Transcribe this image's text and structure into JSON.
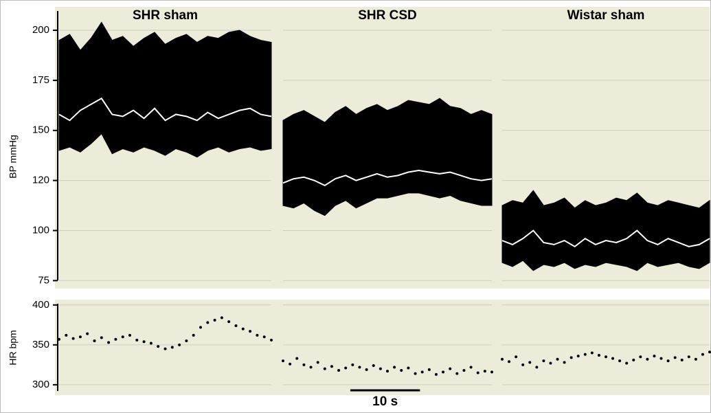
{
  "chart_data": [
    {
      "type": "band",
      "ylabel": "BP mmHg",
      "ylim": [
        71,
        211
      ],
      "yticks": [
        75,
        100,
        120,
        150,
        175,
        200
      ],
      "xlim": [
        0,
        30
      ],
      "x": [
        0,
        1.5,
        3,
        4.5,
        6,
        7.5,
        9,
        10.5,
        12,
        13.5,
        15,
        16.5,
        18,
        19.5,
        21,
        22.5,
        24,
        25.5,
        27,
        28.5,
        30
      ],
      "band_color": "#000000",
      "line_color": "#ffffff",
      "grid": true,
      "series": [
        {
          "name": "SHR sham",
          "upper": [
            195,
            198,
            190,
            196,
            204,
            195,
            197,
            192,
            196,
            199,
            193,
            196,
            198,
            194,
            197,
            196,
            199,
            200,
            197,
            195,
            194
          ],
          "lower": [
            138,
            140,
            137,
            142,
            148,
            136,
            139,
            137,
            140,
            138,
            135,
            139,
            137,
            134,
            138,
            140,
            137,
            139,
            140,
            138,
            139
          ],
          "mean": [
            158,
            155,
            160,
            163,
            166,
            158,
            157,
            160,
            156,
            161,
            155,
            158,
            157,
            155,
            159,
            156,
            158,
            160,
            161,
            158,
            157
          ]
        },
        {
          "name": "SHR CSD",
          "upper": [
            155,
            158,
            160,
            157,
            154,
            159,
            162,
            158,
            161,
            163,
            160,
            162,
            165,
            164,
            163,
            166,
            162,
            161,
            158,
            160,
            158
          ],
          "lower": [
            110,
            109,
            111,
            108,
            106,
            110,
            112,
            109,
            111,
            113,
            113,
            114,
            115,
            115,
            114,
            113,
            114,
            112,
            111,
            110,
            110
          ],
          "mean": [
            119,
            121,
            122,
            120,
            118,
            121,
            123,
            120,
            122,
            124,
            122,
            123,
            125,
            126,
            125,
            124,
            125,
            123,
            121,
            120,
            121
          ]
        },
        {
          "name": "Wistar sham",
          "upper": [
            110,
            112,
            111,
            116,
            110,
            111,
            113,
            109,
            112,
            110,
            111,
            113,
            112,
            115,
            111,
            110,
            112,
            111,
            110,
            109,
            112
          ],
          "lower": [
            84,
            82,
            85,
            80,
            83,
            82,
            84,
            81,
            83,
            82,
            84,
            83,
            82,
            80,
            84,
            82,
            83,
            84,
            82,
            81,
            84
          ],
          "mean": [
            95,
            93,
            96,
            100,
            94,
            93,
            95,
            92,
            96,
            93,
            95,
            94,
            96,
            100,
            95,
            93,
            96,
            94,
            92,
            93,
            96
          ]
        }
      ]
    },
    {
      "type": "scatter",
      "ylabel": "HR bpm",
      "ylim": [
        287,
        405
      ],
      "yticks": [
        300,
        350,
        400
      ],
      "xlim": [
        0,
        30
      ],
      "x": [
        0,
        1,
        2,
        3,
        4,
        5,
        6,
        7,
        8,
        9,
        10,
        11,
        12,
        13,
        14,
        15,
        16,
        17,
        18,
        19,
        20,
        21,
        22,
        23,
        24,
        25,
        26,
        27,
        28,
        29,
        30
      ],
      "color": "#000000",
      "grid": true,
      "series": [
        {
          "values": [
            357,
            362,
            358,
            360,
            364,
            355,
            359,
            353,
            357,
            360,
            362,
            356,
            354,
            352,
            348,
            345,
            347,
            350,
            355,
            362,
            372,
            378,
            381,
            384,
            379,
            374,
            370,
            367,
            362,
            360,
            356
          ]
        },
        {
          "values": [
            330,
            326,
            333,
            325,
            322,
            328,
            320,
            323,
            318,
            321,
            325,
            322,
            319,
            324,
            320,
            317,
            322,
            318,
            321,
            314,
            316,
            319,
            313,
            316,
            320,
            314,
            318,
            322,
            315,
            317,
            316
          ]
        },
        {
          "values": [
            332,
            329,
            335,
            325,
            328,
            322,
            330,
            327,
            332,
            328,
            334,
            336,
            338,
            340,
            337,
            335,
            333,
            330,
            327,
            331,
            335,
            332,
            336,
            333,
            330,
            334,
            331,
            335,
            332,
            338,
            341
          ]
        }
      ],
      "scale_bar": {
        "value": 10,
        "label": "10 s"
      }
    }
  ]
}
